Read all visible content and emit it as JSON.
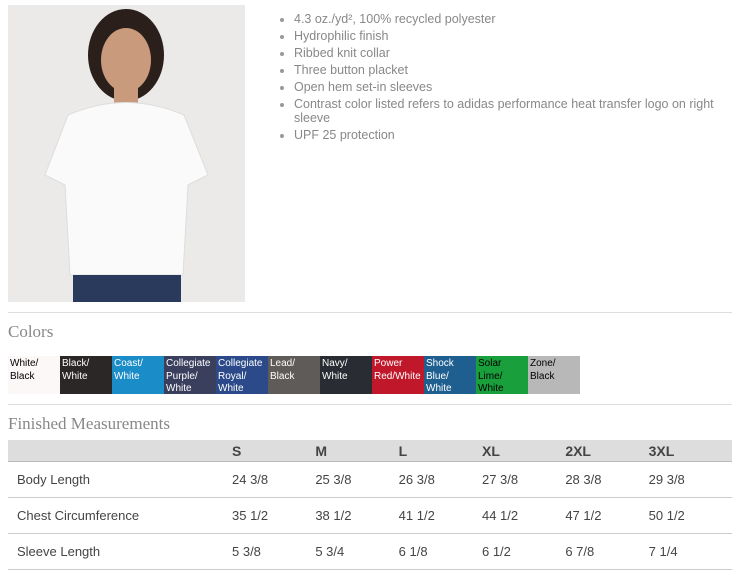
{
  "product": {
    "image_alt": "Woman wearing white polo",
    "features": [
      "4.3 oz./yd², 100% recycled polyester",
      "Hydrophilic finish",
      "Ribbed knit collar",
      "Three button placket",
      "Open hem set-in sleeves",
      "Contrast color listed refers to adidas performance heat transfer logo on right sleeve",
      "UPF 25 protection"
    ]
  },
  "colors": {
    "title": "Colors",
    "swatches": [
      {
        "name": "White/ Black",
        "bg": "#fbf8f7",
        "fg": "#000"
      },
      {
        "name": "Black/ White",
        "bg": "#2b2727",
        "fg": "#fff"
      },
      {
        "name": "Coast/ White",
        "bg": "#1a8cc8",
        "fg": "#fff"
      },
      {
        "name": "Collegiate Purple/ White",
        "bg": "#3a3f5e",
        "fg": "#fff"
      },
      {
        "name": "Collegiate Royal/ White",
        "bg": "#2c4a8a",
        "fg": "#fff"
      },
      {
        "name": "Lead/ Black",
        "bg": "#5e5b59",
        "fg": "#fff"
      },
      {
        "name": "Navy/ White",
        "bg": "#2a2c33",
        "fg": "#fff"
      },
      {
        "name": "Power Red/White",
        "bg": "#c0182a",
        "fg": "#fff"
      },
      {
        "name": "Shock Blue/ White",
        "bg": "#1f5f90",
        "fg": "#fff"
      },
      {
        "name": "Solar Lime/ White",
        "bg": "#19a03c",
        "fg": "#000"
      },
      {
        "name": "Zone/ Black",
        "bg": "#b8b8b8",
        "fg": "#000"
      }
    ]
  },
  "measurements": {
    "title": "Finished Measurements",
    "sizes": [
      "S",
      "M",
      "L",
      "XL",
      "2XL",
      "3XL"
    ],
    "rows": [
      {
        "label": "Body Length",
        "values": [
          "24 3/8",
          "25 3/8",
          "26 3/8",
          "27 3/8",
          "28 3/8",
          "29 3/8"
        ]
      },
      {
        "label": "Chest Circumference",
        "values": [
          "35 1/2",
          "38 1/2",
          "41 1/2",
          "44 1/2",
          "47 1/2",
          "50 1/2"
        ]
      },
      {
        "label": "Sleeve Length",
        "values": [
          "5 3/8",
          "5 3/4",
          "6 1/8",
          "6 1/2",
          "6 7/8",
          "7 1/4"
        ]
      }
    ]
  }
}
